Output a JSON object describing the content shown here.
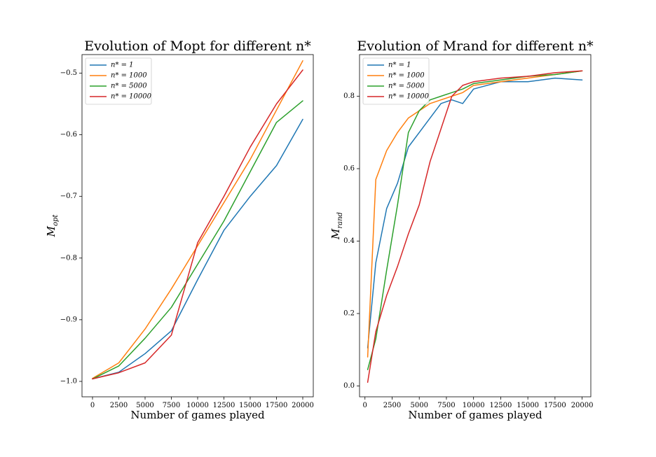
{
  "chart_data": [
    {
      "type": "line",
      "title": "Evolution of Mopt for different n*",
      "xlabel": "Number of games played",
      "ylabel": "M_opt",
      "ylabel_main": "M",
      "ylabel_sub": "opt",
      "xlim": [
        -1000,
        21000
      ],
      "ylim": [
        -1.025,
        -0.47
      ],
      "xticks": [
        0,
        2500,
        5000,
        7500,
        10000,
        12500,
        15000,
        17500,
        20000
      ],
      "yticks": [
        -1.0,
        -0.9,
        -0.8,
        -0.7,
        -0.6,
        -0.5
      ],
      "xtick_labels": [
        "0",
        "2500",
        "5000",
        "7500",
        "10000",
        "12500",
        "15000",
        "17500",
        "20000"
      ],
      "ytick_labels": [
        "−1.0",
        "−0.9",
        "−0.8",
        "−0.7",
        "−0.6",
        "−0.5"
      ],
      "legend": "top-left",
      "grid": false,
      "series": [
        {
          "name": "n* = 1",
          "legend_label": "n* = 1",
          "color": "#1f77b4",
          "x": [
            0,
            2500,
            5000,
            7500,
            10000,
            12500,
            15000,
            17500,
            20000
          ],
          "y": [
            -0.996,
            -0.985,
            -0.955,
            -0.918,
            -0.835,
            -0.755,
            -0.7,
            -0.65,
            -0.575
          ]
        },
        {
          "name": "n* = 1000",
          "legend_label": "n* = 1000",
          "color": "#ff7f0e",
          "x": [
            0,
            2500,
            5000,
            7500,
            10000,
            12500,
            15000,
            17500,
            20000
          ],
          "y": [
            -0.995,
            -0.97,
            -0.915,
            -0.85,
            -0.78,
            -0.71,
            -0.64,
            -0.56,
            -0.48
          ]
        },
        {
          "name": "n* = 5000",
          "legend_label": "n* = 5000",
          "color": "#2ca02c",
          "x": [
            0,
            2500,
            5000,
            7500,
            10000,
            12500,
            15000,
            17500,
            20000
          ],
          "y": [
            -0.996,
            -0.975,
            -0.93,
            -0.88,
            -0.81,
            -0.74,
            -0.66,
            -0.58,
            -0.545
          ]
        },
        {
          "name": "n* = 10000",
          "legend_label": "n* = 10000",
          "color": "#d62728",
          "x": [
            0,
            2500,
            5000,
            7500,
            10000,
            12500,
            15000,
            17500,
            20000
          ],
          "y": [
            -0.996,
            -0.986,
            -0.97,
            -0.925,
            -0.775,
            -0.7,
            -0.62,
            -0.55,
            -0.495
          ]
        }
      ]
    },
    {
      "type": "line",
      "title": "Evolution of Mrand for different n*",
      "xlabel": "Number of games played",
      "ylabel": "M_rand",
      "ylabel_main": "M",
      "ylabel_sub": "rand",
      "xlim": [
        -500,
        20800
      ],
      "ylim": [
        -0.03,
        0.915
      ],
      "xticks": [
        0,
        2500,
        5000,
        7500,
        10000,
        12500,
        15000,
        17500,
        20000
      ],
      "yticks": [
        0.0,
        0.2,
        0.4,
        0.6,
        0.8
      ],
      "xtick_labels": [
        "0",
        "2500",
        "5000",
        "7500",
        "10000",
        "12500",
        "15000",
        "17500",
        "20000"
      ],
      "ytick_labels": [
        "0.0",
        "0.2",
        "0.4",
        "0.6",
        "0.8"
      ],
      "legend": "top-left",
      "grid": false,
      "series": [
        {
          "name": "n* = 1",
          "legend_label": "n* = 1",
          "color": "#1f77b4",
          "x": [
            250,
            1000,
            2000,
            3000,
            4000,
            5000,
            6000,
            7000,
            8000,
            9000,
            10000,
            12500,
            15000,
            17500,
            20000
          ],
          "y": [
            0.105,
            0.34,
            0.49,
            0.56,
            0.66,
            0.7,
            0.74,
            0.78,
            0.79,
            0.78,
            0.82,
            0.84,
            0.84,
            0.85,
            0.845
          ]
        },
        {
          "name": "n* = 1000",
          "legend_label": "n* = 1000",
          "color": "#ff7f0e",
          "x": [
            250,
            1000,
            2000,
            3000,
            4000,
            5000,
            6000,
            7000,
            8000,
            9000,
            10000,
            12500,
            15000,
            17500,
            20000
          ],
          "y": [
            0.08,
            0.57,
            0.65,
            0.7,
            0.74,
            0.76,
            0.78,
            0.79,
            0.8,
            0.81,
            0.83,
            0.84,
            0.85,
            0.86,
            0.87
          ]
        },
        {
          "name": "n* = 5000",
          "legend_label": "n* = 5000",
          "color": "#2ca02c",
          "x": [
            250,
            1000,
            2000,
            3000,
            4000,
            5000,
            6000,
            7000,
            8000,
            9000,
            10000,
            12500,
            15000,
            17500,
            20000
          ],
          "y": [
            0.045,
            0.13,
            0.32,
            0.5,
            0.7,
            0.76,
            0.79,
            0.8,
            0.81,
            0.82,
            0.835,
            0.845,
            0.855,
            0.86,
            0.87
          ]
        },
        {
          "name": "n* = 10000",
          "legend_label": "n* = 10000",
          "color": "#d62728",
          "x": [
            250,
            1000,
            2000,
            3000,
            4000,
            5000,
            6000,
            7000,
            8000,
            9000,
            10000,
            12500,
            15000,
            17500,
            20000
          ],
          "y": [
            0.01,
            0.15,
            0.25,
            0.33,
            0.42,
            0.5,
            0.62,
            0.71,
            0.8,
            0.83,
            0.84,
            0.85,
            0.855,
            0.865,
            0.87
          ]
        }
      ]
    }
  ]
}
